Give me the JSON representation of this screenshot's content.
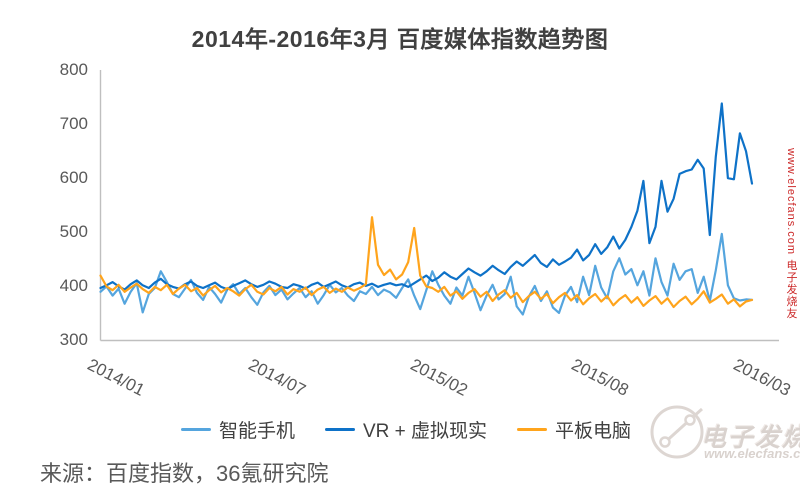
{
  "chart_data": {
    "type": "line",
    "title": "2014年-2016年3月  百度媒体指数趋势图",
    "xlabel": "",
    "ylabel": "",
    "ylim": [
      300,
      800
    ],
    "yticks": [
      800,
      700,
      600,
      500,
      400,
      300
    ],
    "x_tick_labels": [
      "2014/01",
      "2014/07",
      "2015/02",
      "2015/08",
      "2016/03"
    ],
    "grid": false,
    "legend_position": "bottom",
    "axis_color": "#BFBFBF",
    "series": [
      {
        "name": "智能手机",
        "color": "#55A5DE",
        "values": [
          390,
          400,
          383,
          396,
          368,
          390,
          406,
          352,
          386,
          397,
          428,
          408,
          386,
          380,
          396,
          412,
          388,
          375,
          399,
          386,
          370,
          394,
          404,
          386,
          397,
          380,
          366,
          389,
          401,
          384,
          394,
          376,
          387,
          397,
          380,
          391,
          368,
          384,
          403,
          389,
          397,
          383,
          373,
          391,
          386,
          399,
          384,
          394,
          389,
          379,
          397,
          413,
          383,
          358,
          393,
          428,
          403,
          383,
          368,
          398,
          383,
          418,
          388,
          356,
          383,
          403,
          376,
          386,
          418,
          363,
          348,
          381,
          401,
          373,
          391,
          361,
          351,
          383,
          399,
          371,
          418,
          384,
          438,
          398,
          378,
          428,
          452,
          422,
          432,
          402,
          428,
          383,
          452,
          408,
          383,
          442,
          412,
          428,
          432,
          388,
          418,
          373,
          430,
          497,
          402,
          378,
          374,
          376,
          375
        ]
      },
      {
        "name": "VR + 虚拟现实",
        "color": "#0E72C8",
        "values": [
          397,
          402,
          408,
          400,
          394,
          404,
          411,
          402,
          397,
          407,
          414,
          404,
          399,
          396,
          404,
          409,
          401,
          397,
          402,
          407,
          399,
          395,
          401,
          406,
          411,
          404,
          399,
          403,
          409,
          405,
          399,
          397,
          404,
          401,
          396,
          403,
          407,
          399,
          404,
          409,
          402,
          398,
          404,
          407,
          401,
          405,
          399,
          403,
          406,
          402,
          404,
          399,
          406,
          413,
          420,
          410,
          416,
          426,
          418,
          413,
          423,
          433,
          426,
          420,
          428,
          438,
          430,
          423,
          436,
          446,
          438,
          448,
          458,
          443,
          436,
          450,
          440,
          446,
          453,
          468,
          448,
          458,
          478,
          460,
          472,
          492,
          470,
          486,
          510,
          540,
          595,
          480,
          510,
          595,
          538,
          562,
          608,
          613,
          616,
          634,
          618,
          495,
          640,
          738,
          600,
          598,
          683,
          650,
          590
        ]
      },
      {
        "name": "平板电脑",
        "color": "#FFA41C",
        "values": [
          420,
          400,
          393,
          403,
          390,
          398,
          405,
          395,
          388,
          399,
          393,
          403,
          386,
          396,
          403,
          391,
          397,
          383,
          393,
          401,
          389,
          397,
          391,
          383,
          395,
          403,
          390,
          385,
          397,
          391,
          399,
          385,
          395,
          390,
          398,
          384,
          394,
          399,
          388,
          396,
          390,
          398,
          392,
          397,
          404,
          528,
          440,
          421,
          431,
          413,
          422,
          445,
          508,
          420,
          400,
          397,
          390,
          399,
          383,
          391,
          377,
          388,
          395,
          381,
          390,
          373,
          385,
          393,
          379,
          388,
          371,
          382,
          390,
          377,
          386,
          369,
          380,
          388,
          374,
          384,
          367,
          378,
          386,
          372,
          382,
          365,
          376,
          384,
          370,
          380,
          364,
          374,
          382,
          368,
          378,
          362,
          373,
          381,
          367,
          377,
          391,
          370,
          377,
          385,
          368,
          376,
          363,
          372,
          375
        ]
      }
    ]
  },
  "source_note": "来源：百度指数，36氪研究院",
  "watermark": {
    "brand": "电子发烧友",
    "url": "www.elecfans.com",
    "side_text": "www.elecfans.com 电子发烧友"
  }
}
